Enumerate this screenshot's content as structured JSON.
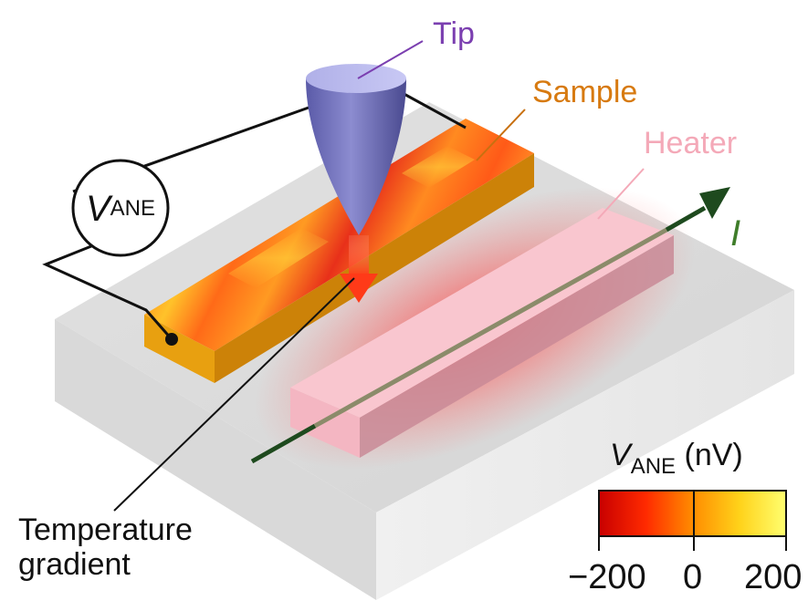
{
  "labels": {
    "tip": "Tip",
    "sample": "Sample",
    "heater": "Heater",
    "current": "I",
    "temperature_gradient": [
      "Temperature",
      "gradient"
    ],
    "voltmeter": {
      "symbol": "V",
      "subscript": "ANE"
    }
  },
  "colorbar": {
    "title_symbol": "V",
    "title_subscript": "ANE",
    "title_unit": "(nV)",
    "ticks": [
      "−200",
      "0",
      "200"
    ],
    "range": [
      -200,
      200
    ],
    "colors": [
      "#cc0000",
      "#ff4a00",
      "#ff9a00",
      "#ffe600",
      "#ffff66"
    ]
  },
  "colors": {
    "tip_label": "#7b3fb0",
    "sample_label": "#d77a10",
    "heater_label": "#f4a9b8",
    "current_label": "#3f7d2a",
    "current_arrow": "#1e4a1e"
  }
}
